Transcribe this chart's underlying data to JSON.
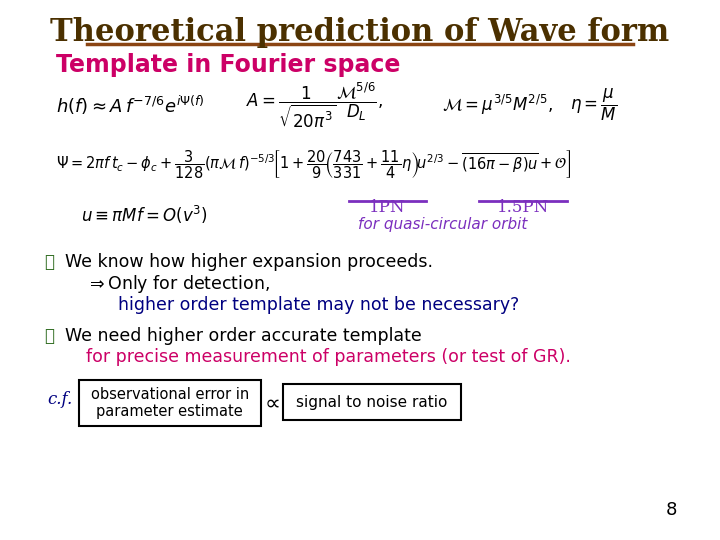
{
  "bg_color": "#ffffff",
  "title": "Theoretical prediction of Wave form",
  "title_color": "#4B3000",
  "title_underline": true,
  "subtitle": "Template in Fourier space",
  "subtitle_color": "#CC0066",
  "eq1": "h(f)\\approx A f^{-7/6}e^{i\\Psi(f)}\\quad A=\\frac{1}{\\sqrt{20\\pi^3}}\\frac{\\mathcal{M}^{5/6}}{D_L},\\quad \\mathcal{M}=\\mu^{3/5}M^{2/5},\\quad \\eta=\\frac{\\mu}{M}",
  "eq2": "\\Psi = 2\\pi f t_c - \\phi_c + \\frac{3}{128}(\\pi\\mathcal{M}\\, f)^{-5/3}\\left[1+\\frac{20}{9}\\left(\\frac{743}{331}+\\frac{11}{4}\\eta\\right)u^{2/3}-\\overline{(16\\pi-\\beta)u}+\\mathcal{O}\\right]",
  "eq3": "u\\equiv \\pi M f = O(v^3)",
  "label_1PN": "1PN",
  "label_15PN": "1.5PN",
  "label_quasi": "for quasi-circular orbit",
  "label_color": "#7B2FBE",
  "underline_color": "#7B2FBE",
  "bullet_color": "#2E6B1F",
  "bullet1_line1": "We know how higher expansion proceeds.",
  "bullet1_line2": "\\Rightarrow Only for detection,",
  "bullet1_line3": "higher order template may not be necessary?",
  "bullet2_line1": "We need higher order accurate template",
  "bullet2_line2": "for precise measurement of parameters (or test of GR).",
  "bullet_text_color": "#000000",
  "bullet2_color": "#CC0066",
  "cf_label": "c.f.",
  "cf_color": "#000080",
  "box1_text": "observational error in\nparameter estimate",
  "proportional": "\\propto",
  "box2_text": "signal to noise ratio",
  "page_num": "8",
  "arrow_color": "#000000",
  "box_color": "#000000"
}
